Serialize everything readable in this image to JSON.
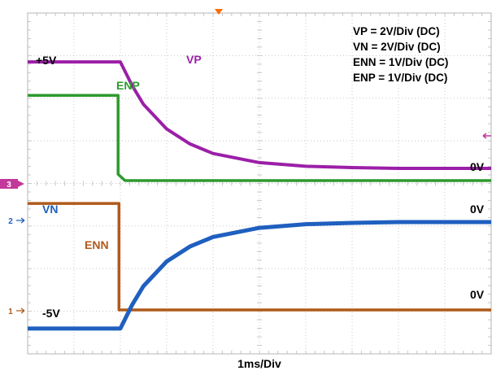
{
  "chart_data": {
    "type": "line",
    "title": "",
    "xlabel": "1ms/Div",
    "ylabel": "",
    "x_unit": "ms",
    "xlim": [
      -2.0,
      8.0
    ],
    "grid": true,
    "notes": [
      "VP = 2V/Div (DC)",
      "VN = 2V/Div (DC)",
      "ENN = 1V/Div (DC)",
      "ENP = 1V/Div (DC)"
    ],
    "levels": {
      "plus5v": "+5V",
      "zero_vp": "0V",
      "zero_vn": "0V",
      "zero_enn": "0V",
      "minus5v": "-5V"
    },
    "channel_markers": [
      "3",
      "2",
      "1"
    ],
    "series": [
      {
        "name": "VP",
        "color": "#9b1fa8",
        "scale": "2V/Div",
        "unit": "V",
        "x": [
          -2.0,
          0.0,
          0.25,
          0.5,
          1.0,
          1.5,
          2.0,
          3.0,
          4.0,
          5.0,
          6.0,
          8.0
        ],
        "y": [
          5.0,
          5.0,
          3.9,
          3.0,
          1.85,
          1.15,
          0.7,
          0.27,
          0.1,
          0.04,
          0.0,
          0.0
        ]
      },
      {
        "name": "ENP",
        "color": "#2e9a2e",
        "scale": "1V/Div",
        "unit": "V",
        "x": [
          -2.0,
          -0.05,
          -0.05,
          0.1,
          8.0
        ],
        "y": [
          2.0,
          2.0,
          0.15,
          0.0,
          0.0
        ]
      },
      {
        "name": "VN",
        "color": "#1f5fbf",
        "scale": "2V/Div",
        "unit": "V",
        "x": [
          -2.0,
          0.0,
          0.25,
          0.5,
          1.0,
          1.5,
          2.0,
          3.0,
          4.0,
          5.0,
          6.0,
          8.0
        ],
        "y": [
          -5.0,
          -5.0,
          -3.9,
          -3.0,
          -1.85,
          -1.15,
          -0.7,
          -0.27,
          -0.1,
          -0.04,
          0.0,
          0.0
        ]
      },
      {
        "name": "ENN",
        "color": "#b05a1a",
        "scale": "1V/Div",
        "unit": "V",
        "x": [
          -2.0,
          -0.03,
          -0.03,
          8.0
        ],
        "y": [
          2.5,
          2.5,
          0.0,
          0.0
        ]
      }
    ]
  },
  "colors": {
    "grid": "#c8c8c8",
    "frame": "#b4b4b4",
    "marker3": "#c2389b",
    "marker2": "#1f5fbf",
    "marker1": "#b05a1a",
    "trigger": "#ff6a00"
  }
}
